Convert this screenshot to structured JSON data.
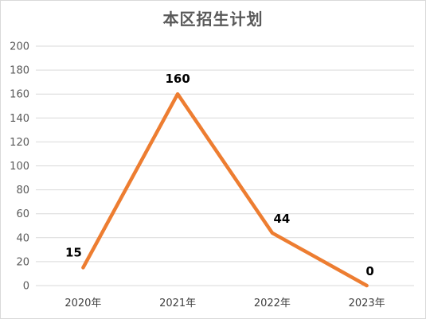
{
  "chart_data": {
    "type": "line",
    "title": "本区招生计划",
    "categories": [
      "2020年",
      "2021年",
      "2022年",
      "2023年"
    ],
    "series": [
      {
        "values": [
          15,
          160,
          44,
          0
        ]
      }
    ],
    "data_labels": [
      "15",
      "160",
      "44",
      "0"
    ],
    "ylim": [
      0,
      200
    ],
    "yticks": [
      "0",
      "20",
      "40",
      "60",
      "80",
      "100",
      "120",
      "140",
      "160",
      "180",
      "200"
    ],
    "grid": true,
    "line_color": "#ED7D31",
    "xlabel": "",
    "ylabel": ""
  }
}
